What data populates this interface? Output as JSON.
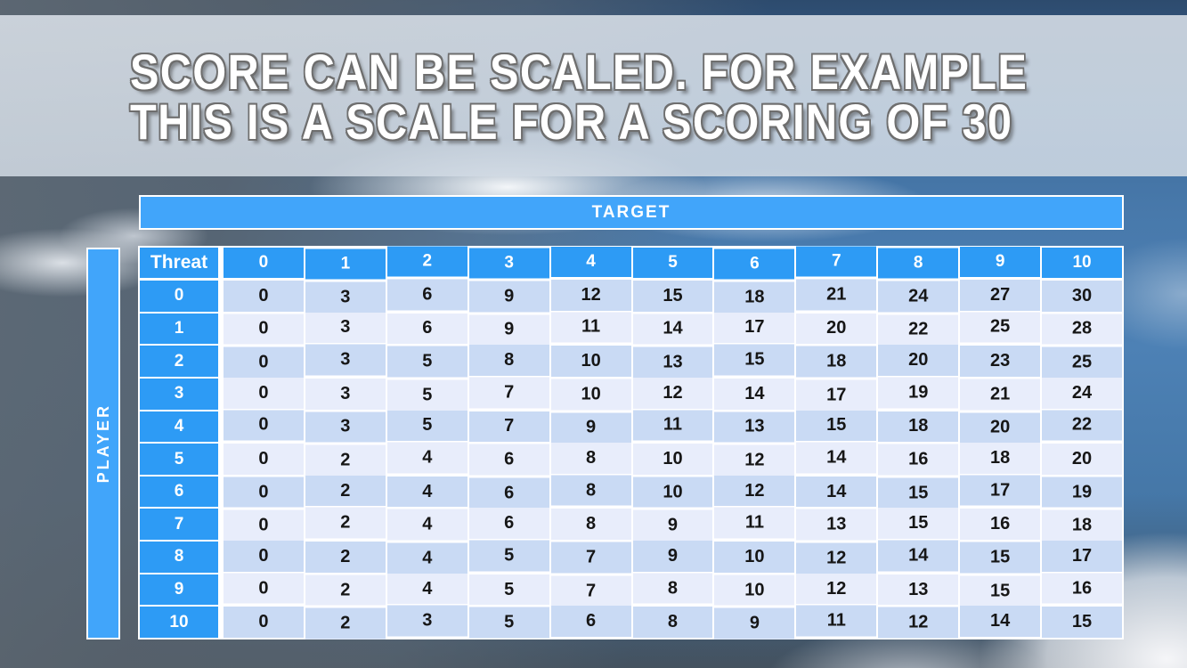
{
  "slide": {
    "title_line1": "SCORE CAN BE SCALED. FOR EXAMPLE",
    "title_line2": "THIS IS A SCALE FOR A SCORING OF 30"
  },
  "chart_data": {
    "type": "table",
    "title": "SCORE CAN BE SCALED. FOR EXAMPLE THIS IS A SCALE FOR A SCORING OF 30",
    "col_axis_label": "TARGET",
    "row_axis_label": "PLAYER",
    "corner_label": "Threat",
    "col_headers": [
      "0",
      "1",
      "2",
      "3",
      "4",
      "5",
      "6",
      "7",
      "8",
      "9",
      "10"
    ],
    "row_headers": [
      "0",
      "1",
      "2",
      "3",
      "4",
      "5",
      "6",
      "7",
      "8",
      "9",
      "10"
    ],
    "values": [
      [
        0,
        3,
        6,
        9,
        12,
        15,
        18,
        21,
        24,
        27,
        30
      ],
      [
        0,
        3,
        6,
        9,
        11,
        14,
        17,
        20,
        22,
        25,
        28
      ],
      [
        0,
        3,
        5,
        8,
        10,
        13,
        15,
        18,
        20,
        23,
        25
      ],
      [
        0,
        3,
        5,
        7,
        10,
        12,
        14,
        17,
        19,
        21,
        24
      ],
      [
        0,
        3,
        5,
        7,
        9,
        11,
        13,
        15,
        18,
        20,
        22
      ],
      [
        0,
        2,
        4,
        6,
        8,
        10,
        12,
        14,
        16,
        18,
        20
      ],
      [
        0,
        2,
        4,
        6,
        8,
        10,
        12,
        14,
        15,
        17,
        19
      ],
      [
        0,
        2,
        4,
        6,
        8,
        9,
        11,
        13,
        15,
        16,
        18
      ],
      [
        0,
        2,
        4,
        5,
        7,
        9,
        10,
        12,
        14,
        15,
        17
      ],
      [
        0,
        2,
        4,
        5,
        7,
        8,
        10,
        12,
        13,
        15,
        16
      ],
      [
        0,
        2,
        3,
        5,
        6,
        8,
        9,
        11,
        12,
        14,
        15
      ]
    ]
  },
  "colors": {
    "bar_blue": "#41A5FA",
    "header_blue": "#2D9BF5",
    "row_even": "#C9DAF4",
    "row_odd": "#E8EDFB",
    "cell_text": "#161616",
    "table_border": "#FFFFFF",
    "title_text": "#FFFFFF",
    "title_outline": "#6E6E6E"
  }
}
